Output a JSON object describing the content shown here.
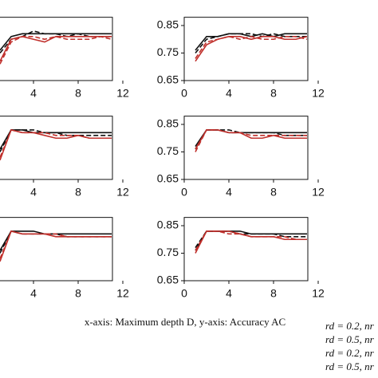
{
  "chart_data": [
    {
      "type": "line",
      "x": [
        1,
        2,
        3,
        4,
        5,
        6,
        7,
        8,
        9,
        10,
        11
      ],
      "xlim": [
        0,
        12
      ],
      "ylim": [
        0.65,
        0.88
      ],
      "xticks": [
        4,
        8,
        12
      ],
      "series": [
        {
          "color": "#111111",
          "dashed": false,
          "values": [
            0.76,
            0.81,
            0.82,
            0.82,
            0.82,
            0.82,
            0.82,
            0.82,
            0.82,
            0.82,
            0.82
          ]
        },
        {
          "color": "#111111",
          "dashed": true,
          "values": [
            0.75,
            0.8,
            0.81,
            0.83,
            0.82,
            0.82,
            0.81,
            0.82,
            0.81,
            0.81,
            0.81
          ]
        },
        {
          "color": "#c0302c",
          "dashed": false,
          "values": [
            0.72,
            0.8,
            0.81,
            0.8,
            0.79,
            0.81,
            0.81,
            0.81,
            0.81,
            0.81,
            0.81
          ]
        },
        {
          "color": "#c0302c",
          "dashed": true,
          "values": [
            0.71,
            0.79,
            0.81,
            0.81,
            0.8,
            0.81,
            0.8,
            0.8,
            0.8,
            0.81,
            0.8
          ]
        }
      ]
    },
    {
      "type": "line",
      "x": [
        1,
        2,
        3,
        4,
        5,
        6,
        7,
        8,
        9,
        10,
        11
      ],
      "xlim": [
        0,
        12
      ],
      "ylim": [
        0.65,
        0.88
      ],
      "xticks": [
        0,
        4,
        8,
        12
      ],
      "yticks": [
        0.65,
        0.75,
        0.85
      ],
      "series": [
        {
          "color": "#111111",
          "dashed": false,
          "values": [
            0.76,
            0.81,
            0.81,
            0.82,
            0.82,
            0.81,
            0.82,
            0.81,
            0.82,
            0.82,
            0.82
          ]
        },
        {
          "color": "#111111",
          "dashed": true,
          "values": [
            0.75,
            0.8,
            0.81,
            0.82,
            0.82,
            0.82,
            0.81,
            0.82,
            0.81,
            0.81,
            0.81
          ]
        },
        {
          "color": "#c0302c",
          "dashed": false,
          "values": [
            0.72,
            0.78,
            0.8,
            0.81,
            0.81,
            0.8,
            0.81,
            0.81,
            0.8,
            0.8,
            0.81
          ]
        },
        {
          "color": "#c0302c",
          "dashed": true,
          "values": [
            0.73,
            0.79,
            0.8,
            0.81,
            0.8,
            0.81,
            0.8,
            0.8,
            0.81,
            0.81,
            0.8
          ]
        }
      ]
    },
    {
      "type": "line",
      "x": [
        1,
        2,
        3,
        4,
        5,
        6,
        7,
        8,
        9,
        10,
        11
      ],
      "xlim": [
        0,
        12
      ],
      "ylim": [
        0.65,
        0.88
      ],
      "xticks": [
        4,
        8,
        12
      ],
      "series": [
        {
          "color": "#111111",
          "dashed": false,
          "values": [
            0.76,
            0.83,
            0.83,
            0.82,
            0.82,
            0.82,
            0.82,
            0.82,
            0.82,
            0.82,
            0.82
          ]
        },
        {
          "color": "#111111",
          "dashed": true,
          "values": [
            0.75,
            0.83,
            0.83,
            0.83,
            0.82,
            0.82,
            0.81,
            0.81,
            0.81,
            0.81,
            0.81
          ]
        },
        {
          "color": "#c0302c",
          "dashed": false,
          "values": [
            0.72,
            0.83,
            0.82,
            0.82,
            0.81,
            0.8,
            0.8,
            0.81,
            0.8,
            0.8,
            0.8
          ]
        },
        {
          "color": "#c0302c",
          "dashed": true,
          "values": [
            0.73,
            0.83,
            0.82,
            0.82,
            0.82,
            0.81,
            0.81,
            0.81,
            0.8,
            0.8,
            0.8
          ]
        }
      ]
    },
    {
      "type": "line",
      "x": [
        1,
        2,
        3,
        4,
        5,
        6,
        7,
        8,
        9,
        10,
        11
      ],
      "xlim": [
        0,
        12
      ],
      "ylim": [
        0.65,
        0.88
      ],
      "xticks": [
        0,
        4,
        8,
        12
      ],
      "yticks": [
        0.65,
        0.75,
        0.85
      ],
      "series": [
        {
          "color": "#111111",
          "dashed": false,
          "values": [
            0.77,
            0.83,
            0.83,
            0.82,
            0.82,
            0.82,
            0.82,
            0.82,
            0.82,
            0.82,
            0.82
          ]
        },
        {
          "color": "#111111",
          "dashed": true,
          "values": [
            0.76,
            0.83,
            0.83,
            0.83,
            0.82,
            0.82,
            0.82,
            0.82,
            0.81,
            0.81,
            0.81
          ]
        },
        {
          "color": "#c0302c",
          "dashed": false,
          "values": [
            0.76,
            0.83,
            0.83,
            0.82,
            0.82,
            0.8,
            0.8,
            0.81,
            0.8,
            0.8,
            0.8
          ]
        },
        {
          "color": "#c0302c",
          "dashed": true,
          "values": [
            0.75,
            0.83,
            0.83,
            0.82,
            0.82,
            0.81,
            0.81,
            0.81,
            0.81,
            0.81,
            0.81
          ]
        }
      ]
    },
    {
      "type": "line",
      "x": [
        1,
        2,
        3,
        4,
        5,
        6,
        7,
        8,
        9,
        10,
        11
      ],
      "xlim": [
        0,
        12
      ],
      "ylim": [
        0.65,
        0.88
      ],
      "xticks": [
        4,
        8,
        12
      ],
      "series": [
        {
          "color": "#111111",
          "dashed": false,
          "values": [
            0.76,
            0.83,
            0.83,
            0.83,
            0.82,
            0.82,
            0.82,
            0.82,
            0.82,
            0.82,
            0.82
          ]
        },
        {
          "color": "#111111",
          "dashed": true,
          "values": [
            0.75,
            0.83,
            0.82,
            0.82,
            0.82,
            0.82,
            0.81,
            0.81,
            0.81,
            0.81,
            0.81
          ]
        },
        {
          "color": "#c0302c",
          "dashed": false,
          "values": [
            0.72,
            0.83,
            0.82,
            0.82,
            0.82,
            0.81,
            0.81,
            0.81,
            0.81,
            0.81,
            0.81
          ]
        },
        {
          "color": "#c0302c",
          "dashed": true,
          "values": [
            0.73,
            0.83,
            0.82,
            0.82,
            0.82,
            0.82,
            0.81,
            0.81,
            0.81,
            0.81,
            0.81
          ]
        }
      ]
    },
    {
      "type": "line",
      "x": [
        1,
        2,
        3,
        4,
        5,
        6,
        7,
        8,
        9,
        10,
        11
      ],
      "xlim": [
        0,
        12
      ],
      "ylim": [
        0.65,
        0.88
      ],
      "xticks": [
        0,
        4,
        8,
        12
      ],
      "yticks": [
        0.65,
        0.75,
        0.85
      ],
      "series": [
        {
          "color": "#111111",
          "dashed": false,
          "values": [
            0.76,
            0.83,
            0.83,
            0.83,
            0.83,
            0.82,
            0.82,
            0.82,
            0.82,
            0.82,
            0.82
          ]
        },
        {
          "color": "#111111",
          "dashed": true,
          "values": [
            0.77,
            0.83,
            0.83,
            0.83,
            0.82,
            0.82,
            0.82,
            0.82,
            0.81,
            0.81,
            0.81
          ]
        },
        {
          "color": "#c0302c",
          "dashed": false,
          "values": [
            0.75,
            0.83,
            0.83,
            0.83,
            0.82,
            0.81,
            0.81,
            0.81,
            0.8,
            0.8,
            0.8
          ]
        },
        {
          "color": "#c0302c",
          "dashed": true,
          "values": [
            0.76,
            0.83,
            0.83,
            0.82,
            0.82,
            0.81,
            0.81,
            0.81,
            0.81,
            0.8,
            0.8
          ]
        }
      ]
    }
  ],
  "caption": "x-axis: Maximum depth D, y-axis: Accuracy AC",
  "legend_labels": [
    "rd = 0.2, nr",
    "rd = 0.5, nr",
    "rd = 0.2, nr",
    "rd = 0.5, nr"
  ]
}
